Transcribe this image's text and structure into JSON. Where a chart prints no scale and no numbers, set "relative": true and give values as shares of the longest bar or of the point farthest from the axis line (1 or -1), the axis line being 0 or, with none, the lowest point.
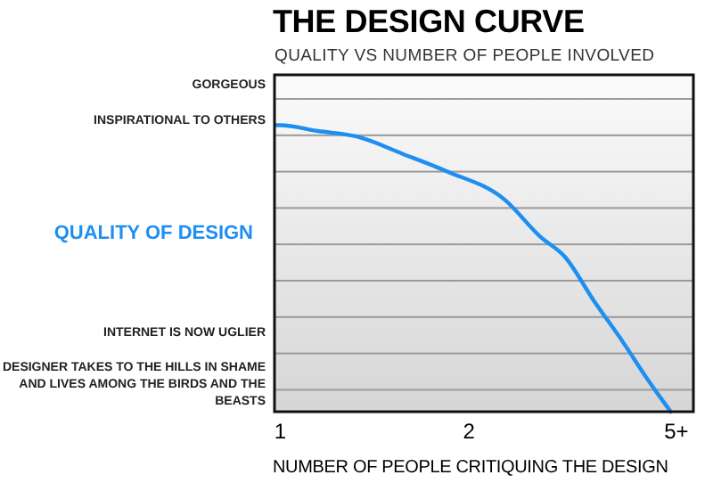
{
  "chart_data": {
    "type": "line",
    "title": "THE DESIGN CURVE",
    "subtitle": "QUALITY VS NUMBER OF PEOPLE INVOLVED",
    "xlabel": "NUMBER OF PEOPLE CRITIQUING THE DESIGN",
    "ylabel": "QUALITY OF DESIGN",
    "annotations": [
      "GORGEOUS",
      "INSPIRATIONAL TO OTHERS",
      "INTERNET IS NOW UGLIER",
      "DESIGNER TAKES TO THE HILLS IN SHAME AND LIVES AMONG THE BIRDS AND THE BEASTS"
    ],
    "relative": true,
    "x": [
      0.97,
      1.0,
      1.2,
      1.41,
      1.65,
      1.88,
      2.19,
      2.38,
      2.51,
      2.66,
      2.82,
      2.94,
      3.07
    ],
    "series": [
      {
        "color": "#1e8ff0",
        "values": [
          1,
          1,
          0.98,
          0.96,
          0.9,
          0.84,
          0.74,
          0.61,
          0.54,
          0.39,
          0.24,
          0.12,
          0
        ]
      }
    ],
    "xlim": [
      0.97,
      3.19
    ],
    "xticks": [
      1,
      2,
      {
        "value": 3.1,
        "label": "5+"
      }
    ],
    "marker": "none",
    "line_style": "solid"
  }
}
